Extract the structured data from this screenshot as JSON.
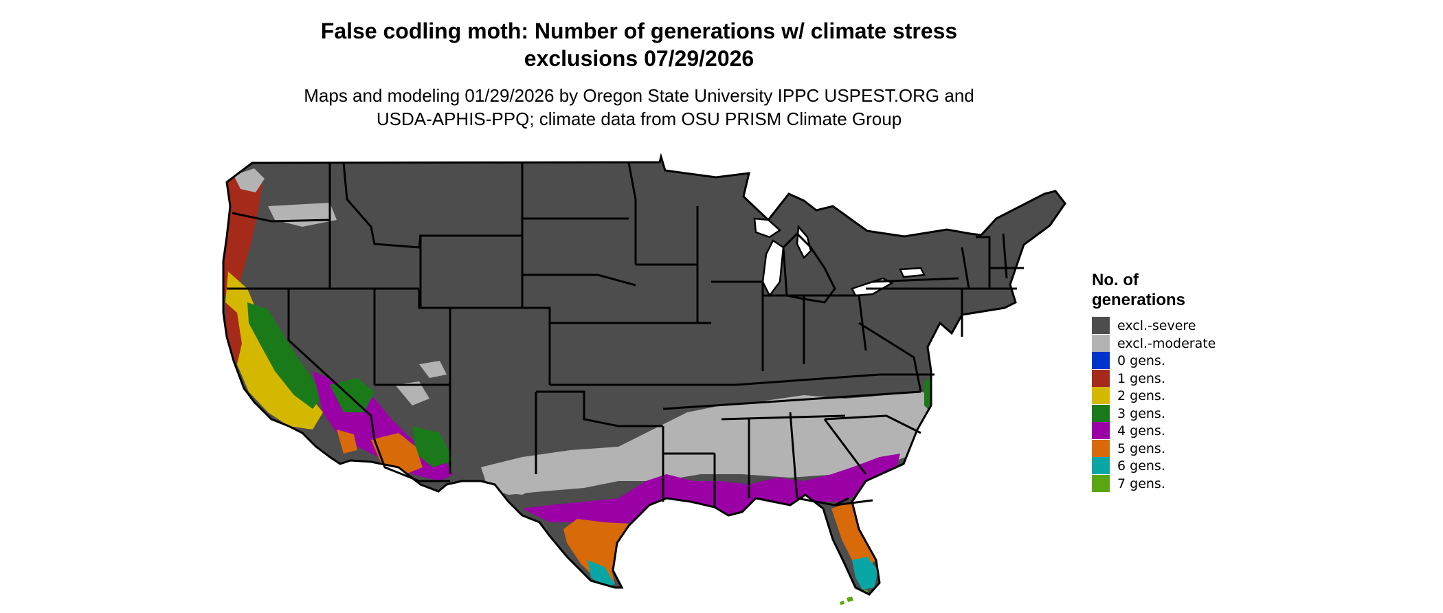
{
  "title": {
    "line1": "False codling moth: Number of generations w/ climate stress",
    "line2": "exclusions 07/29/2026"
  },
  "subtitle": {
    "line1": "Maps and modeling 01/29/2026 by Oregon State University IPPC USPEST.ORG and",
    "line2": "USDA-APHIS-PPQ; climate data from OSU PRISM Climate Group"
  },
  "legend": {
    "title_line1": "No. of",
    "title_line2": "generations",
    "items": [
      {
        "label": "excl.-severe",
        "color": "#4d4d4d"
      },
      {
        "label": "excl.-moderate",
        "color": "#b3b3b3"
      },
      {
        "label": "0 gens.",
        "color": "#0033cc"
      },
      {
        "label": "1 gens.",
        "color": "#a52a1a"
      },
      {
        "label": "2 gens.",
        "color": "#d4b800"
      },
      {
        "label": "3 gens.",
        "color": "#1a7a1a"
      },
      {
        "label": "4 gens.",
        "color": "#9b00a6"
      },
      {
        "label": "5 gens.",
        "color": "#d86a0a"
      },
      {
        "label": "6 gens.",
        "color": "#0aa6a6"
      },
      {
        "label": "7 gens.",
        "color": "#5aa612"
      }
    ]
  },
  "map": {
    "region": "Contiguous United States",
    "boundary_color": "#000000"
  }
}
